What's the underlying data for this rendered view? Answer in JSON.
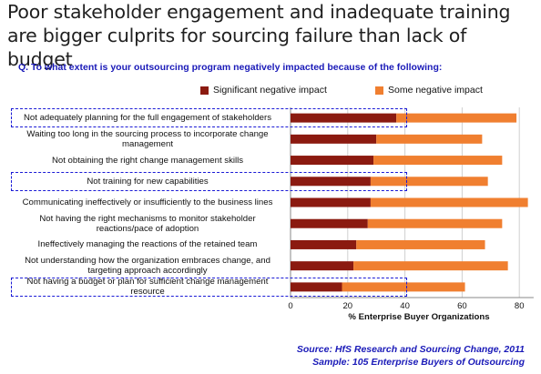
{
  "title": "Poor stakeholder engagement and inadequate training are bigger culprits for sourcing failure than lack of budget",
  "question": "Q. To what extent is your outsourcing program negatively impacted because of the following:",
  "source_line1": "Source:  HfS Research and Sourcing Change, 2011",
  "source_line2": "Sample: 105 Enterprise Buyers of Outsourcing",
  "colors": {
    "significant": "#8b1a10",
    "some": "#f07f30",
    "highlight": "#1a1ad6",
    "text_blue": "#1a1ab8"
  },
  "chart_data": {
    "type": "bar",
    "orientation": "horizontal",
    "stacked": true,
    "categories": [
      "Not adequately planning for the full engagement of stakeholders",
      "Waiting too long in the sourcing process to incorporate change management",
      "Not obtaining the right change management skills",
      "Not training for new capabilities",
      "Communicating ineffectively or insufficiently to the business lines",
      "Not having the right mechanisms to monitor stakeholder reactions/pace of adoption",
      "Ineffectively managing the reactions of the retained team",
      "Not understanding how the organization embraces change, and targeting approach accordingly",
      "Not having a budget or plan for sufficient change management resource"
    ],
    "series": [
      {
        "name": "Significant negative impact",
        "values": [
          37,
          30,
          29,
          28,
          28,
          27,
          23,
          22,
          18
        ]
      },
      {
        "name": "Some negative impact",
        "values": [
          42,
          37,
          45,
          41,
          55,
          47,
          45,
          54,
          43
        ]
      }
    ],
    "xlabel": "% Enterprise Buyer Organizations",
    "xlim": [
      0,
      85
    ],
    "xticks": [
      "0",
      "20",
      "40",
      "60",
      "80"
    ],
    "grid": true,
    "legend": "top",
    "highlighted_categories": [
      0,
      3,
      8
    ]
  }
}
